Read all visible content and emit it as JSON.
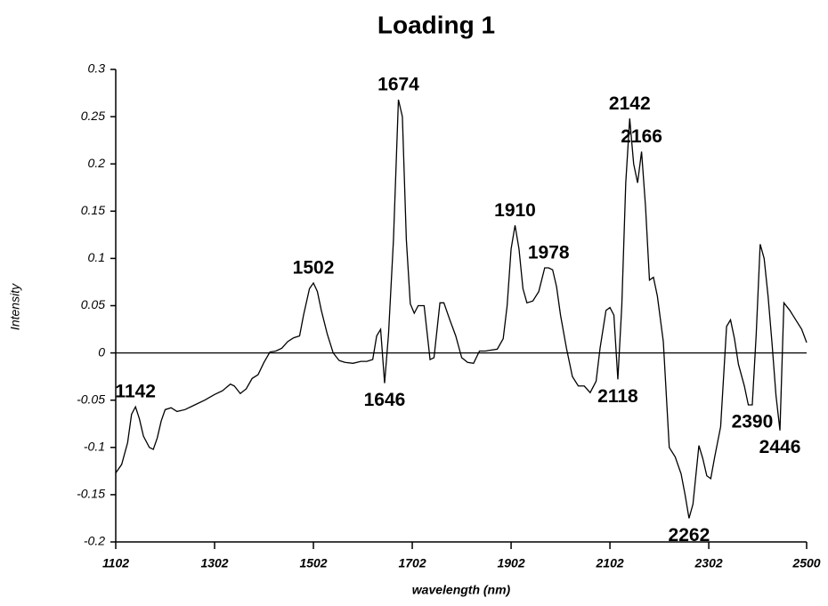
{
  "chart_data": {
    "type": "line",
    "title": "Loading 1",
    "x_label": "wavelength (nm)",
    "y_label": "Intensity",
    "xlim": [
      1102,
      2500
    ],
    "xticks": [
      1102,
      1302,
      1502,
      1702,
      1902,
      2102,
      2302,
      2500
    ],
    "ylim": [
      -0.2,
      0.3
    ],
    "yticks": [
      -0.2,
      -0.15,
      -0.1,
      -0.05,
      0,
      0.05,
      0.1,
      0.15,
      0.2,
      0.25,
      0.3
    ],
    "zero_line": true,
    "series": [
      {
        "color": "#000000",
        "x": [
          1102,
          1114,
          1126,
          1134,
          1142,
          1150,
          1158,
          1170,
          1178,
          1186,
          1194,
          1202,
          1214,
          1226,
          1242,
          1262,
          1282,
          1302,
          1318,
          1334,
          1342,
          1354,
          1366,
          1378,
          1390,
          1402,
          1414,
          1426,
          1438,
          1450,
          1462,
          1474,
          1482,
          1494,
          1502,
          1510,
          1518,
          1530,
          1542,
          1554,
          1566,
          1582,
          1598,
          1610,
          1622,
          1630,
          1638,
          1646,
          1654,
          1664,
          1674,
          1682,
          1690,
          1698,
          1706,
          1714,
          1726,
          1738,
          1746,
          1758,
          1766,
          1778,
          1790,
          1802,
          1814,
          1826,
          1838,
          1850,
          1862,
          1874,
          1886,
          1894,
          1902,
          1910,
          1918,
          1926,
          1934,
          1946,
          1958,
          1970,
          1978,
          1986,
          1994,
          2002,
          2014,
          2026,
          2038,
          2050,
          2062,
          2074,
          2082,
          2094,
          2102,
          2110,
          2118,
          2126,
          2134,
          2142,
          2150,
          2158,
          2166,
          2174,
          2182,
          2190,
          2198,
          2210,
          2222,
          2234,
          2246,
          2254,
          2262,
          2270,
          2282,
          2290,
          2298,
          2306,
          2314,
          2326,
          2338,
          2346,
          2354,
          2362,
          2374,
          2382,
          2390,
          2398,
          2406,
          2414,
          2422,
          2430,
          2438,
          2446,
          2454,
          2466,
          2478,
          2490,
          2500
        ],
        "values": [
          -0.127,
          -0.118,
          -0.095,
          -0.065,
          -0.057,
          -0.07,
          -0.088,
          -0.1,
          -0.102,
          -0.09,
          -0.072,
          -0.06,
          -0.058,
          -0.062,
          -0.06,
          -0.055,
          -0.05,
          -0.044,
          -0.04,
          -0.033,
          -0.035,
          -0.043,
          -0.038,
          -0.027,
          -0.023,
          -0.01,
          0.001,
          0.002,
          0.005,
          0.012,
          0.016,
          0.018,
          0.04,
          0.068,
          0.074,
          0.065,
          0.045,
          0.02,
          0,
          -0.008,
          -0.01,
          -0.011,
          -0.009,
          -0.009,
          -0.007,
          0.018,
          0.025,
          -0.032,
          0.02,
          0.12,
          0.268,
          0.25,
          0.12,
          0.052,
          0.042,
          0.05,
          0.05,
          -0.007,
          -0.005,
          0.053,
          0.053,
          0.035,
          0.018,
          -0.005,
          -0.01,
          -0.011,
          0.002,
          0.002,
          0.003,
          0.004,
          0.015,
          0.05,
          0.11,
          0.135,
          0.11,
          0.068,
          0.053,
          0.055,
          0.065,
          0.09,
          0.09,
          0.088,
          0.07,
          0.04,
          0.005,
          -0.025,
          -0.035,
          -0.035,
          -0.042,
          -0.03,
          0.005,
          0.045,
          0.048,
          0.04,
          -0.028,
          0.05,
          0.18,
          0.248,
          0.2,
          0.18,
          0.213,
          0.155,
          0.077,
          0.08,
          0.06,
          0.012,
          -0.1,
          -0.11,
          -0.128,
          -0.15,
          -0.175,
          -0.16,
          -0.098,
          -0.112,
          -0.13,
          -0.133,
          -0.11,
          -0.078,
          0.028,
          0.035,
          0.015,
          -0.012,
          -0.035,
          -0.055,
          -0.055,
          0.02,
          0.115,
          0.1,
          0.06,
          0.01,
          -0.045,
          -0.082,
          0.053,
          0.045,
          0.035,
          0.025,
          0.011
        ]
      }
    ],
    "annotations": [
      {
        "text": "1142",
        "x": 1142
      },
      {
        "text": "1502",
        "x": 1502
      },
      {
        "text": "1646",
        "x": 1646
      },
      {
        "text": "1674",
        "x": 1674
      },
      {
        "text": "1910",
        "x": 1910
      },
      {
        "text": "1978",
        "x": 1978
      },
      {
        "text": "2118",
        "x": 2118
      },
      {
        "text": "2142",
        "x": 2142
      },
      {
        "text": "2166",
        "x": 2166
      },
      {
        "text": "2262",
        "x": 2262
      },
      {
        "text": "2390",
        "x": 2390
      },
      {
        "text": "2446",
        "x": 2446
      }
    ]
  }
}
